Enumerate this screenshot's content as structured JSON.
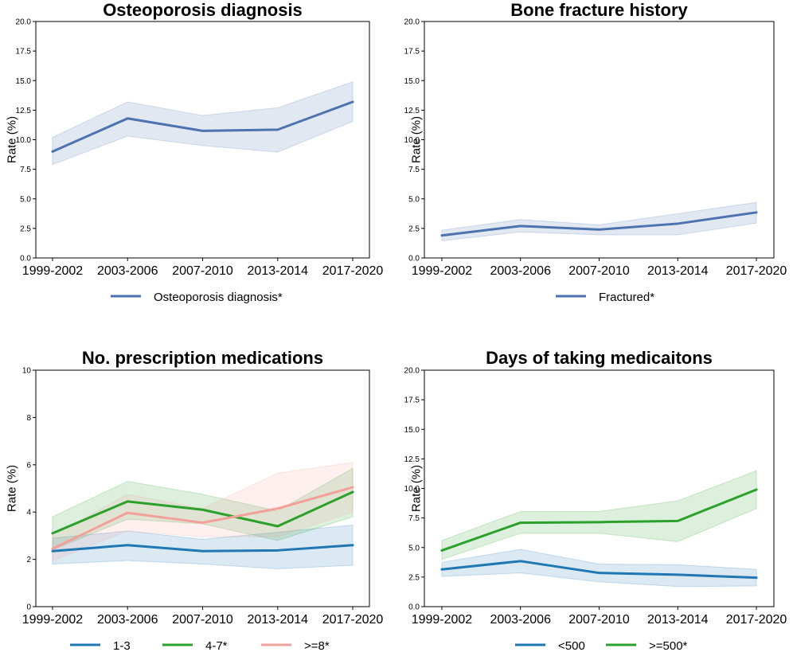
{
  "chart_data": [
    {
      "type": "line",
      "title": "Osteoporosis diagnosis",
      "xlabel": "",
      "ylabel": "Rate (%)",
      "categories": [
        "1999-2002",
        "2003-2006",
        "2007-2010",
        "2013-2014",
        "2017-2020"
      ],
      "ylim": [
        0,
        20
      ],
      "yticks": [
        "0.0",
        "2.5",
        "5.0",
        "7.5",
        "10.0",
        "12.5",
        "15.0",
        "17.5",
        "20.0"
      ],
      "series": [
        {
          "name": "Osteoporosis diagnosis*",
          "color": "#4c72b0",
          "values": [
            9.0,
            11.8,
            10.75,
            10.85,
            13.2
          ],
          "lower": [
            7.9,
            10.3,
            9.5,
            8.95,
            11.55
          ],
          "upper": [
            10.2,
            13.2,
            12.05,
            12.7,
            14.9
          ]
        }
      ]
    },
    {
      "type": "line",
      "title": "Bone fracture history",
      "xlabel": "",
      "ylabel": "Rate (%)",
      "categories": [
        "1999-2002",
        "2003-2006",
        "2007-2010",
        "2013-2014",
        "2017-2020"
      ],
      "ylim": [
        0,
        20
      ],
      "yticks": [
        "0.0",
        "2.5",
        "5.0",
        "7.5",
        "10.0",
        "12.5",
        "15.0",
        "17.5",
        "20.0"
      ],
      "series": [
        {
          "name": "Fractured*",
          "color": "#4c72b0",
          "values": [
            1.9,
            2.7,
            2.4,
            2.9,
            3.85
          ],
          "lower": [
            1.45,
            2.2,
            1.95,
            1.95,
            2.95
          ],
          "upper": [
            2.35,
            3.25,
            2.8,
            3.75,
            4.7
          ]
        }
      ]
    },
    {
      "type": "line",
      "title": "No. prescription medications",
      "xlabel": "",
      "ylabel": "Rate (%)",
      "categories": [
        "1999-2002",
        "2003-2006",
        "2007-2010",
        "2013-2014",
        "2017-2020"
      ],
      "ylim": [
        0,
        10
      ],
      "yticks": [
        "0",
        "2",
        "4",
        "6",
        "8",
        "10"
      ],
      "series": [
        {
          "name": "1-3",
          "color": "#1f77b4",
          "values": [
            2.35,
            2.6,
            2.35,
            2.38,
            2.6
          ],
          "lower": [
            1.8,
            1.95,
            1.8,
            1.6,
            1.75
          ],
          "upper": [
            2.9,
            3.2,
            2.85,
            3.15,
            3.45
          ]
        },
        {
          "name": "4-7*",
          "color": "#2ca02c",
          "values": [
            3.1,
            4.45,
            4.1,
            3.4,
            4.85
          ],
          "lower": [
            2.4,
            3.7,
            3.5,
            2.8,
            3.8
          ],
          "upper": [
            3.8,
            5.3,
            4.75,
            4.05,
            5.85
          ]
        },
        {
          "name": ">=8*",
          "color": "#f4a09a",
          "values": [
            2.45,
            3.97,
            3.55,
            4.15,
            5.05
          ],
          "lower": [
            1.95,
            3.2,
            2.95,
            2.95,
            4.0
          ],
          "upper": [
            3.0,
            4.75,
            4.15,
            5.65,
            6.1
          ]
        }
      ]
    },
    {
      "type": "line",
      "title": "Days of taking medicaitons",
      "xlabel": "",
      "ylabel": "Rate (%)",
      "categories": [
        "1999-2002",
        "2003-2006",
        "2007-2010",
        "2013-2014",
        "2017-2020"
      ],
      "ylim": [
        0,
        20
      ],
      "yticks": [
        "0.0",
        "2.5",
        "5.0",
        "7.5",
        "10.0",
        "12.5",
        "15.0",
        "17.5",
        "20.0"
      ],
      "series": [
        {
          "name": "<500",
          "color": "#1f77b4",
          "values": [
            3.15,
            3.85,
            2.85,
            2.7,
            2.45
          ],
          "lower": [
            2.55,
            2.85,
            2.1,
            1.7,
            1.75
          ],
          "upper": [
            3.75,
            4.85,
            3.6,
            3.55,
            3.15
          ]
        },
        {
          "name": ">=500*",
          "color": "#2ca02c",
          "values": [
            4.75,
            7.1,
            7.15,
            7.25,
            9.9
          ],
          "lower": [
            4.0,
            6.2,
            6.2,
            5.5,
            8.3
          ],
          "upper": [
            5.6,
            8.05,
            8.05,
            8.95,
            11.5
          ]
        }
      ]
    }
  ]
}
